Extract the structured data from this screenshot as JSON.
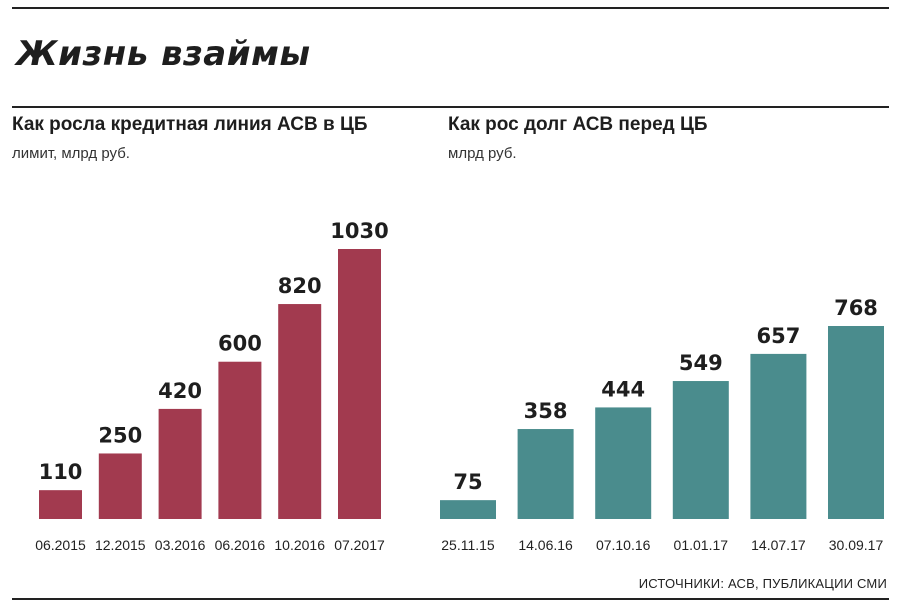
{
  "headline": "Жизнь взаймы",
  "source": "ИСТОЧНИКИ: АСВ, ПУБЛИКАЦИИ СМИ",
  "chart_data": [
    {
      "type": "bar",
      "title": "Как росла кредитная линия АСВ в ЦБ",
      "unit": "лимит, млрд руб.",
      "categories": [
        "06.2015",
        "12.2015",
        "03.2016",
        "06.2016",
        "10.2016",
        "07.2017"
      ],
      "values": [
        110,
        250,
        420,
        600,
        820,
        1030
      ],
      "value_labels": [
        "110",
        "250",
        "420",
        "600",
        "820",
        "1030"
      ],
      "color": "#a23a4f",
      "ylim": [
        0,
        1030
      ],
      "grid": false
    },
    {
      "type": "bar",
      "title": "Как рос долг АСВ перед ЦБ",
      "unit": "млрд руб.",
      "categories": [
        "25.11.15",
        "14.06.16",
        "07.10.16",
        "01.01.17",
        "14.07.17",
        "30.09.17"
      ],
      "values": [
        75,
        358,
        444,
        549,
        657,
        768
      ],
      "value_labels": [
        "75",
        "358",
        "444",
        "549",
        "657",
        "768"
      ],
      "color": "#4a8c8d",
      "ylim": [
        0,
        768
      ],
      "grid": false
    }
  ]
}
